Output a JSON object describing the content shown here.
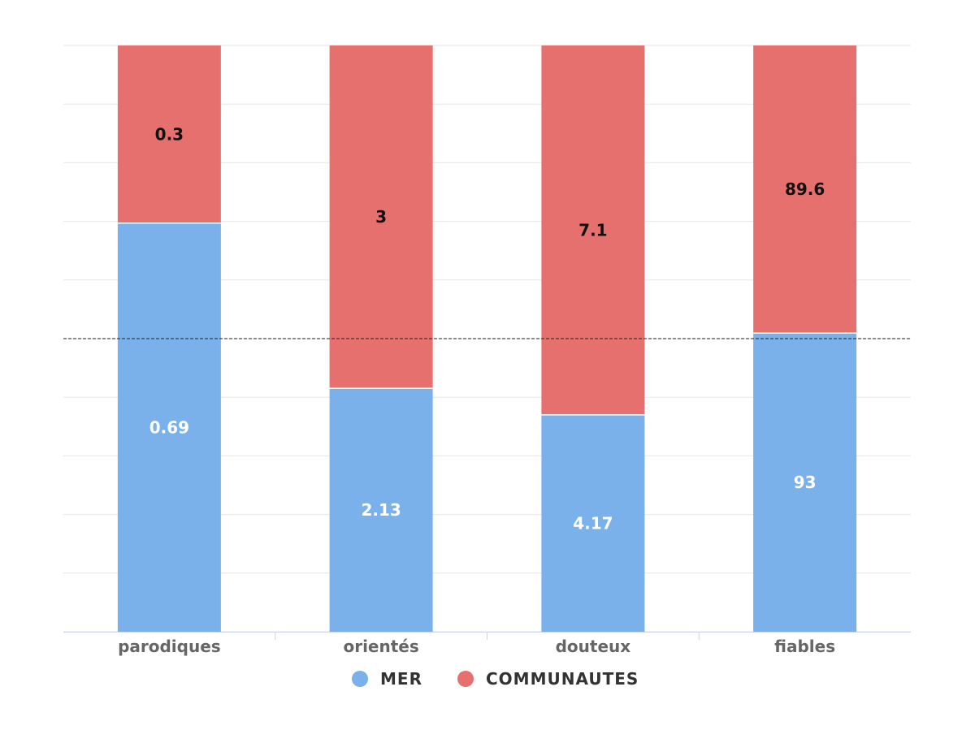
{
  "chart_data": {
    "type": "bar",
    "stacked": true,
    "normalized": true,
    "categories": [
      "parodiques",
      "orientés",
      "douteux",
      "fiables"
    ],
    "series": [
      {
        "name": "MER",
        "values": [
          0.69,
          2.13,
          4.17,
          93
        ],
        "color": "#7ab1ea",
        "label_color": "#ffffff"
      },
      {
        "name": "COMMUNAUTES",
        "values": [
          0.3,
          3,
          7.1,
          89.6
        ],
        "color": "#e6706e",
        "label_color": "#111111"
      }
    ],
    "reference_line": 0.5,
    "grid": true,
    "legend_position": "bottom-center"
  }
}
